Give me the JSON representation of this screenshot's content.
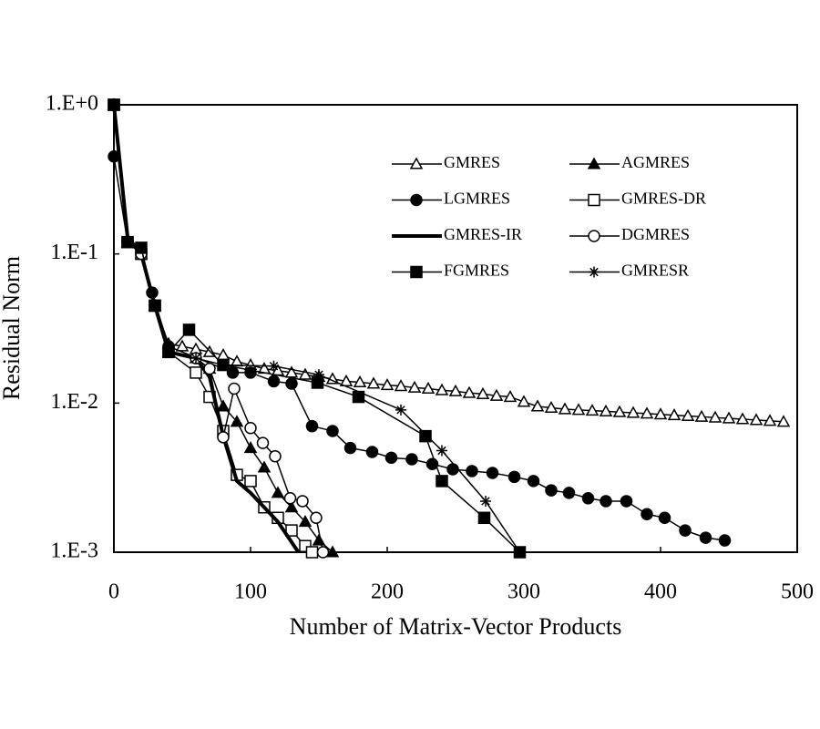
{
  "chart_data": {
    "type": "line",
    "x_label": "Number of Matrix-Vector Products",
    "y_label": "Residual Norm",
    "xlim": [
      0,
      500
    ],
    "xticks": [
      0,
      100,
      200,
      300,
      400,
      500
    ],
    "ylim": [
      0.001,
      1
    ],
    "yticks": [
      {
        "value": 0.001,
        "label": "1.E-3"
      },
      {
        "value": 0.01,
        "label": "1.E-2"
      },
      {
        "value": 0.1,
        "label": "1.E-1"
      },
      {
        "value": 1,
        "label": "1.E+0"
      }
    ],
    "log_y": true,
    "grid": false,
    "legend_position": "upper right",
    "series": [
      {
        "name": "GMRES",
        "color": "#000000",
        "marker": "triangle-open",
        "line_width": 1.5,
        "x": [
          0,
          10,
          20,
          30,
          40,
          50,
          60,
          70,
          80,
          90,
          100,
          110,
          120,
          130,
          140,
          150,
          160,
          170,
          180,
          190,
          200,
          210,
          220,
          230,
          240,
          250,
          260,
          270,
          280,
          290,
          300,
          310,
          320,
          330,
          340,
          350,
          360,
          370,
          380,
          390,
          400,
          410,
          420,
          430,
          440,
          450,
          460,
          470,
          480,
          490
        ],
        "values": [
          1,
          0.12,
          0.1,
          0.045,
          0.025,
          0.024,
          0.023,
          0.022,
          0.021,
          0.019,
          0.018,
          0.017,
          0.0165,
          0.016,
          0.0155,
          0.015,
          0.0145,
          0.014,
          0.0138,
          0.0135,
          0.0132,
          0.013,
          0.0127,
          0.0125,
          0.0122,
          0.012,
          0.0117,
          0.0115,
          0.0112,
          0.011,
          0.0102,
          0.0095,
          0.0093,
          0.0091,
          0.009,
          0.0089,
          0.0088,
          0.0087,
          0.0086,
          0.0085,
          0.0084,
          0.0083,
          0.0082,
          0.0081,
          0.008,
          0.0079,
          0.0078,
          0.0077,
          0.0076,
          0.0075
        ]
      },
      {
        "name": "AGMRES",
        "color": "#000000",
        "marker": "triangle-filled",
        "line_width": 1.5,
        "x": [
          0,
          10,
          20,
          30,
          40,
          60,
          70,
          80,
          90,
          100,
          110,
          120,
          130,
          140,
          150,
          160
        ],
        "values": [
          1,
          0.12,
          0.1,
          0.045,
          0.022,
          0.02,
          0.017,
          0.0095,
          0.0075,
          0.005,
          0.0037,
          0.0025,
          0.002,
          0.0016,
          0.0012,
          0.001
        ]
      },
      {
        "name": "LGMRES",
        "color": "#000000",
        "marker": "circle-filled",
        "line_width": 1.5,
        "x": [
          0,
          10,
          20,
          28,
          40,
          87,
          100,
          117,
          130,
          145,
          160,
          173,
          189,
          203,
          218,
          233,
          248,
          262,
          277,
          293,
          307,
          320,
          333,
          347,
          360,
          375,
          390,
          403,
          418,
          433,
          447
        ],
        "values": [
          0.45,
          0.12,
          0.1,
          0.055,
          0.024,
          0.016,
          0.016,
          0.014,
          0.0135,
          0.007,
          0.0065,
          0.005,
          0.0047,
          0.0043,
          0.0042,
          0.0039,
          0.0036,
          0.0035,
          0.0034,
          0.0032,
          0.003,
          0.0026,
          0.0025,
          0.0023,
          0.0022,
          0.0022,
          0.0018,
          0.0017,
          0.0014,
          0.00125,
          0.0012
        ]
      },
      {
        "name": "GMRES-DR",
        "color": "#000000",
        "marker": "square-open",
        "line_width": 1.5,
        "x": [
          0,
          10,
          20,
          30,
          40,
          60,
          70,
          80,
          90,
          100,
          110,
          120,
          130,
          140,
          145
        ],
        "values": [
          1,
          0.12,
          0.1,
          0.045,
          0.022,
          0.016,
          0.011,
          0.0065,
          0.0033,
          0.003,
          0.002,
          0.0017,
          0.0014,
          0.0011,
          0.001
        ]
      },
      {
        "name": "GMRES-IR",
        "color": "#000000",
        "marker": "none",
        "line_width": 4,
        "x": [
          0,
          10,
          20,
          30,
          40,
          60,
          70,
          80,
          90,
          100,
          120,
          135
        ],
        "values": [
          1,
          0.13,
          0.1,
          0.045,
          0.022,
          0.02,
          0.015,
          0.006,
          0.003,
          0.0025,
          0.0016,
          0.001
        ]
      },
      {
        "name": "DGMRES",
        "color": "#000000",
        "marker": "circle-open",
        "line_width": 1.5,
        "x": [
          0,
          10,
          20,
          30,
          40,
          60,
          70,
          80,
          88,
          100,
          109,
          118,
          129,
          138,
          148,
          153
        ],
        "values": [
          1,
          0.12,
          0.1,
          0.045,
          0.022,
          0.02,
          0.017,
          0.0059,
          0.0125,
          0.0068,
          0.0054,
          0.0044,
          0.0023,
          0.0022,
          0.0017,
          0.001
        ]
      },
      {
        "name": "FGMRES",
        "color": "#000000",
        "marker": "square-filled",
        "line_width": 1.5,
        "x": [
          0,
          10,
          20,
          30,
          40,
          55,
          80,
          149,
          179,
          228,
          240,
          271,
          297
        ],
        "values": [
          1,
          0.12,
          0.11,
          0.045,
          0.022,
          0.031,
          0.018,
          0.0137,
          0.011,
          0.006,
          0.003,
          0.0017,
          0.001
        ]
      },
      {
        "name": "GMRESR",
        "color": "#000000",
        "marker": "asterisk",
        "line_width": 1.5,
        "x": [
          0,
          10,
          20,
          30,
          40,
          60,
          80,
          117,
          150,
          210,
          240,
          272,
          297
        ],
        "values": [
          1,
          0.12,
          0.11,
          0.045,
          0.022,
          0.02,
          0.018,
          0.0177,
          0.0155,
          0.009,
          0.0048,
          0.0022,
          0.001
        ]
      }
    ]
  }
}
